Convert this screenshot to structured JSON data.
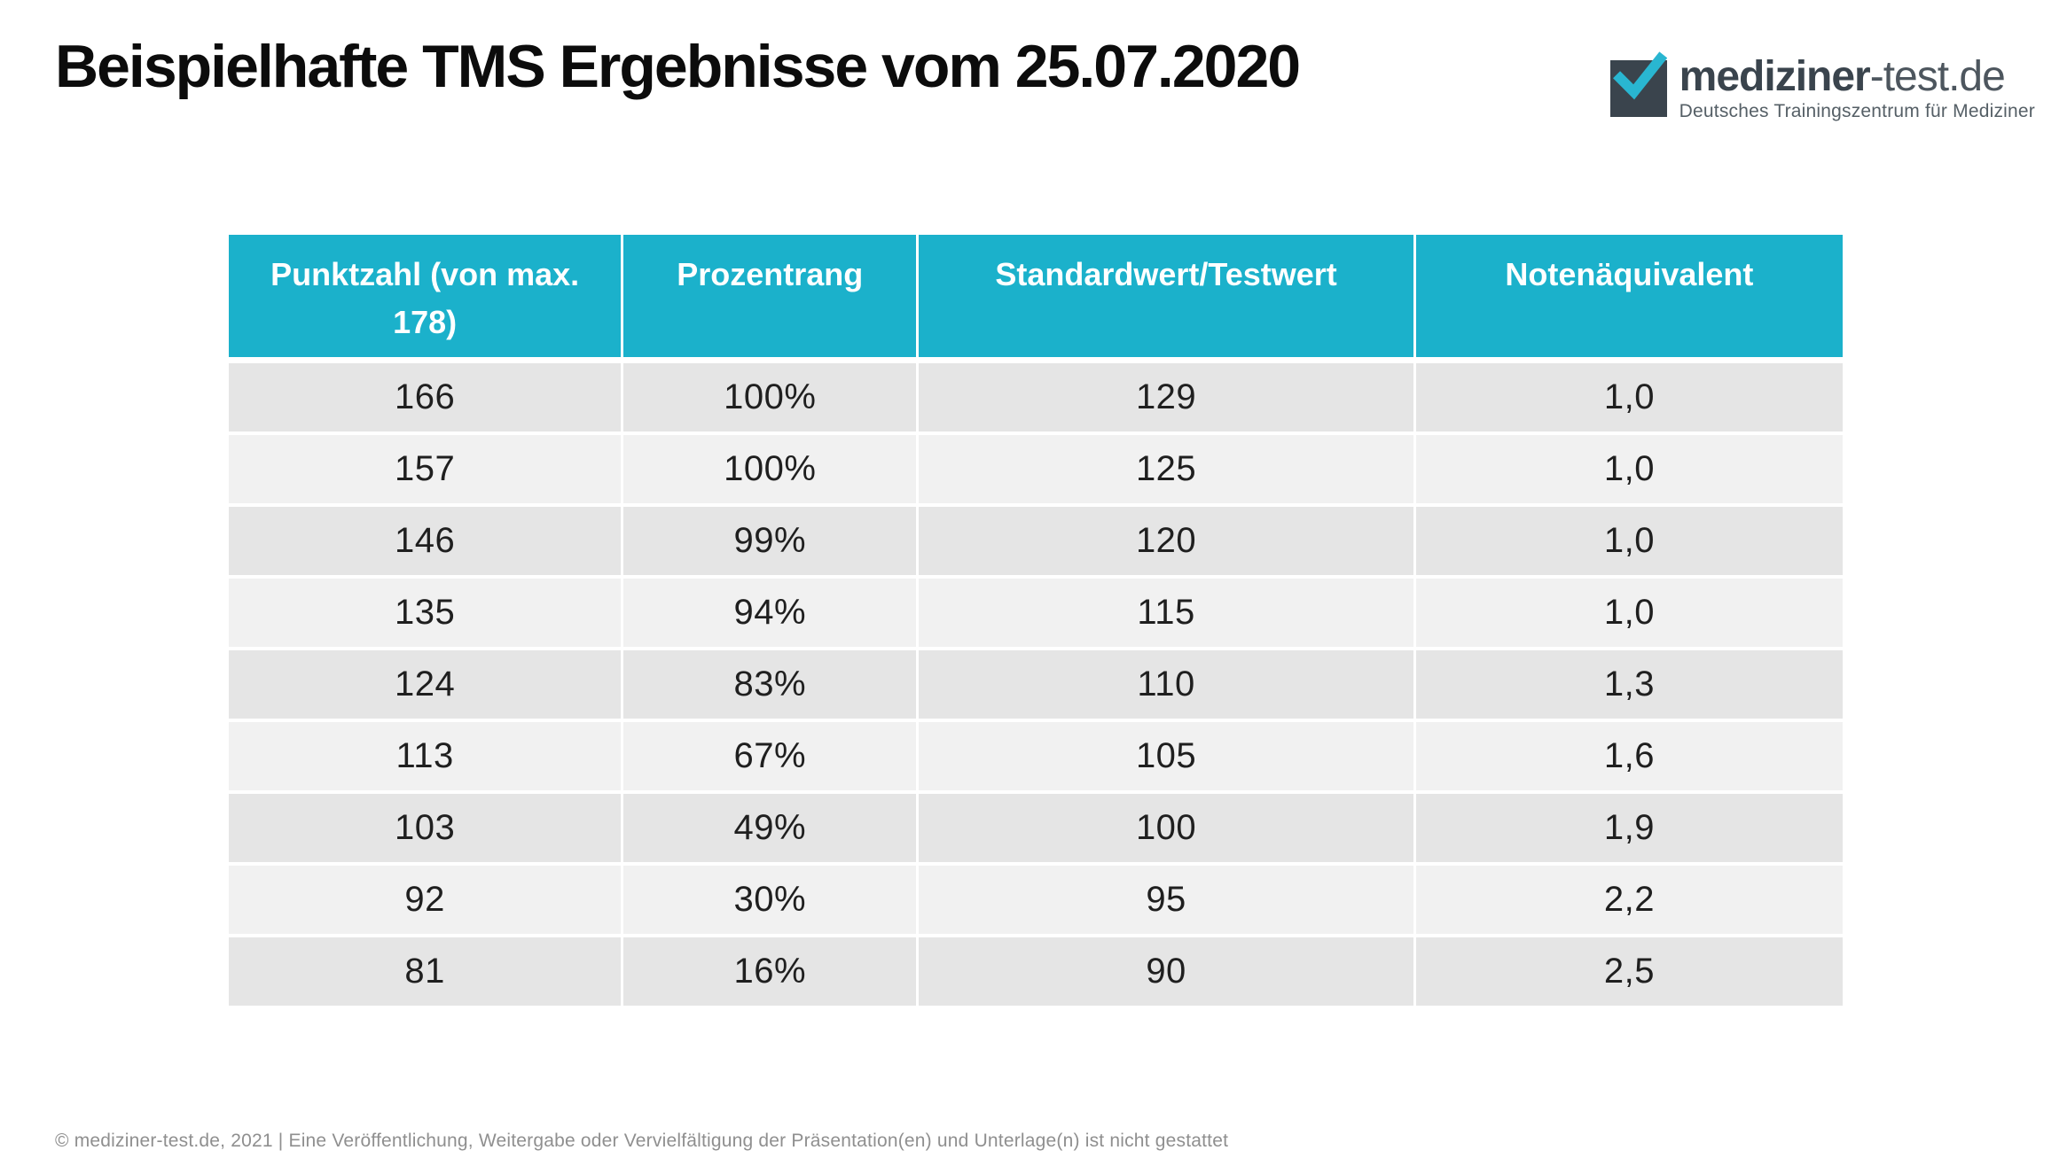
{
  "page": {
    "title": "Beispielhafte TMS Ergebnisse vom 25.07.2020",
    "footer": "© mediziner-test.de, 2021 | Eine Veröffentlichung, Weitergabe oder Vervielfältigung der Präsentation(en) und Unterlage(n) ist nicht gestattet"
  },
  "logo": {
    "brand_bold": "mediziner",
    "brand_light": "-test.de",
    "subtitle": "Deutsches Trainingszentrum für Mediziner",
    "check_icon": "checkmark"
  },
  "colors": {
    "header_bg": "#1bb1cb",
    "row_dark": "#e5e5e5",
    "row_light": "#f1f1f1",
    "logo_square": "#3a444d",
    "check_teal": "#29b6d1",
    "footer_gray": "#8f8f8f"
  },
  "chart_data": {
    "type": "table",
    "title": "Beispielhafte TMS Ergebnisse vom 25.07.2020",
    "columns": [
      "Punktzahl (von max. 178)",
      "Prozentrang",
      "Standardwert/Testwert",
      "Notenäquivalent"
    ],
    "rows": [
      [
        "166",
        "100%",
        "129",
        "1,0"
      ],
      [
        "157",
        "100%",
        "125",
        "1,0"
      ],
      [
        "146",
        "99%",
        "120",
        "1,0"
      ],
      [
        "135",
        "94%",
        "115",
        "1,0"
      ],
      [
        "124",
        "83%",
        "110",
        "1,3"
      ],
      [
        "113",
        "67%",
        "105",
        "1,6"
      ],
      [
        "103",
        "49%",
        "100",
        "1,9"
      ],
      [
        "92",
        "30%",
        "95",
        "2,2"
      ],
      [
        "81",
        "16%",
        "90",
        "2,5"
      ]
    ],
    "layout": {
      "header_text_color": "#ffffff",
      "alternating_rows": true,
      "column_alignment": "center"
    }
  }
}
